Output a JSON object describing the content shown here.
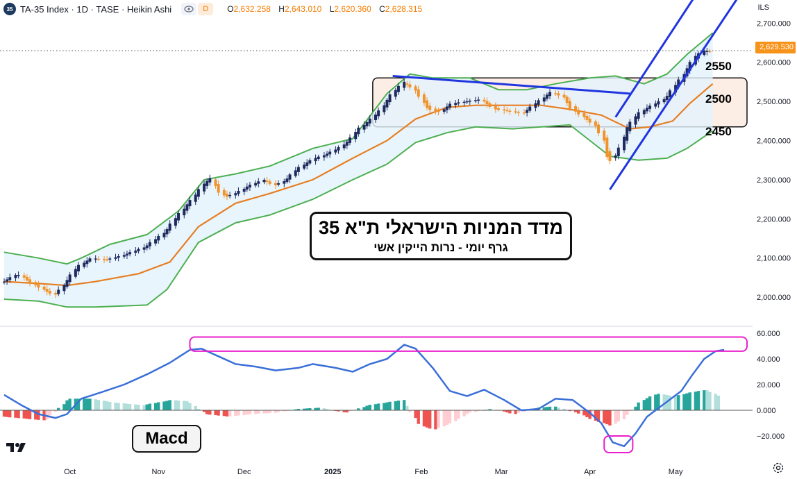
{
  "header": {
    "symbol_badge": "35",
    "title": "TA-35 Index · 1D · TASE · Heikin Ashi",
    "interval_badge": "D",
    "ohlc": [
      {
        "key": "O",
        "value": "2,632.258"
      },
      {
        "key": "H",
        "value": "2,643.010"
      },
      {
        "key": "L",
        "value": "2,620.360"
      },
      {
        "key": "C",
        "value": "2,628.315"
      }
    ],
    "currency": "ILS"
  },
  "last_price_label": "2,629.530",
  "annotations": {
    "title": "מדד המניות הישראלי ת\"א 35",
    "subtitle": "גרף  יומי   -  נרות הייקין אשי",
    "macd_label": "Macd",
    "levels": [
      "2550",
      "2500",
      "2450"
    ]
  },
  "colors": {
    "bull_candle": "#1e2a5e",
    "bear_candle": "#f0932b",
    "bollinger_band": "#4caf50",
    "bollinger_fill": "#e3f2fd",
    "moving_average": "#e67e22",
    "trendline": "#1f35e0",
    "macd_line": "#3a6fd8",
    "hist_pos_strong": "#26a69a",
    "hist_pos_weak": "#b2dfdb",
    "hist_neg_strong": "#ef5350",
    "hist_neg_weak": "#ffcdd2",
    "highlight": "#e91ecb",
    "zone_fill": "#fce8dc",
    "last_price": "#f7931a"
  },
  "chart_data": [
    {
      "type": "candlestick",
      "name": "Heikin Ashi price",
      "x_range": [
        "2024-09-08",
        "2025-05-26"
      ],
      "ylim": [
        1940,
        2720
      ],
      "yticks": [
        "2,000.000",
        "2,100.000",
        "2,200.000",
        "2,300.000",
        "2,400.000",
        "2,500.000",
        "2,600.000",
        "2,700.000"
      ],
      "xticks": [
        {
          "label": "Oct",
          "date": "2024-10-01"
        },
        {
          "label": "Nov",
          "date": "2024-11-01"
        },
        {
          "label": "Dec",
          "date": "2024-12-01"
        },
        {
          "label": "2025",
          "date": "2025-01-01"
        },
        {
          "label": "Feb",
          "date": "2025-02-01"
        },
        {
          "label": "Mar",
          "date": "2025-03-01"
        },
        {
          "label": "Apr",
          "date": "2025-04-01"
        },
        {
          "label": "May",
          "date": "2025-05-01"
        }
      ],
      "close_path": [
        [
          "2024-09-08",
          2040
        ],
        [
          "2024-09-13",
          2060
        ],
        [
          "2024-09-18",
          2035
        ],
        [
          "2024-09-23",
          2015
        ],
        [
          "2024-09-26",
          2005
        ],
        [
          "2024-09-30",
          2040
        ],
        [
          "2024-10-04",
          2080
        ],
        [
          "2024-10-09",
          2100
        ],
        [
          "2024-10-14",
          2095
        ],
        [
          "2024-10-21",
          2110
        ],
        [
          "2024-10-28",
          2130
        ],
        [
          "2024-11-04",
          2170
        ],
        [
          "2024-11-08",
          2210
        ],
        [
          "2024-11-13",
          2250
        ],
        [
          "2024-11-17",
          2290
        ],
        [
          "2024-11-20",
          2305
        ],
        [
          "2024-11-22",
          2270
        ],
        [
          "2024-11-25",
          2255
        ],
        [
          "2024-11-28",
          2265
        ],
        [
          "2024-12-03",
          2285
        ],
        [
          "2024-12-08",
          2300
        ],
        [
          "2024-12-12",
          2285
        ],
        [
          "2024-12-16",
          2300
        ],
        [
          "2024-12-20",
          2330
        ],
        [
          "2024-12-26",
          2355
        ],
        [
          "2024-12-30",
          2365
        ],
        [
          "2025-01-03",
          2380
        ],
        [
          "2025-01-07",
          2400
        ],
        [
          "2025-01-10",
          2430
        ],
        [
          "2025-01-14",
          2450
        ],
        [
          "2025-01-18",
          2480
        ],
        [
          "2025-01-22",
          2520
        ],
        [
          "2025-01-26",
          2550
        ],
        [
          "2025-01-30",
          2530
        ],
        [
          "2025-02-03",
          2485
        ],
        [
          "2025-02-07",
          2470
        ],
        [
          "2025-02-12",
          2495
        ],
        [
          "2025-02-17",
          2500
        ],
        [
          "2025-02-22",
          2505
        ],
        [
          "2025-02-27",
          2480
        ],
        [
          "2025-03-04",
          2475
        ],
        [
          "2025-03-09",
          2470
        ],
        [
          "2025-03-14",
          2500
        ],
        [
          "2025-03-19",
          2525
        ],
        [
          "2025-03-23",
          2510
        ],
        [
          "2025-03-26",
          2480
        ],
        [
          "2025-03-30",
          2460
        ],
        [
          "2025-04-03",
          2440
        ],
        [
          "2025-04-06",
          2400
        ],
        [
          "2025-04-08",
          2340
        ],
        [
          "2025-04-11",
          2370
        ],
        [
          "2025-04-14",
          2430
        ],
        [
          "2025-04-18",
          2470
        ],
        [
          "2025-04-23",
          2490
        ],
        [
          "2025-04-28",
          2510
        ],
        [
          "2025-05-01",
          2540
        ],
        [
          "2025-05-05",
          2580
        ],
        [
          "2025-05-08",
          2615
        ],
        [
          "2025-05-11",
          2630
        ],
        [
          "2025-05-14",
          2628
        ]
      ],
      "overlays": {
        "bollinger_upper": [
          [
            "2024-09-08",
            2115
          ],
          [
            "2024-09-20",
            2100
          ],
          [
            "2024-09-30",
            2085
          ],
          [
            "2024-10-05",
            2100
          ],
          [
            "2024-10-15",
            2135
          ],
          [
            "2024-10-28",
            2160
          ],
          [
            "2024-11-08",
            2220
          ],
          [
            "2024-11-17",
            2300
          ],
          [
            "2024-11-28",
            2315
          ],
          [
            "2024-12-10",
            2335
          ],
          [
            "2024-12-25",
            2380
          ],
          [
            "2025-01-08",
            2405
          ],
          [
            "2025-01-20",
            2520
          ],
          [
            "2025-01-28",
            2570
          ],
          [
            "2025-02-05",
            2560
          ],
          [
            "2025-02-18",
            2560
          ],
          [
            "2025-02-28",
            2530
          ],
          [
            "2025-03-10",
            2530
          ],
          [
            "2025-03-20",
            2545
          ],
          [
            "2025-04-01",
            2560
          ],
          [
            "2025-04-10",
            2565
          ],
          [
            "2025-04-20",
            2545
          ],
          [
            "2025-04-28",
            2570
          ],
          [
            "2025-05-05",
            2620
          ],
          [
            "2025-05-14",
            2675
          ]
        ],
        "bollinger_lower": [
          [
            "2024-09-08",
            1995
          ],
          [
            "2024-09-20",
            1990
          ],
          [
            "2024-09-30",
            1975
          ],
          [
            "2024-10-10",
            1975
          ],
          [
            "2024-10-28",
            1980
          ],
          [
            "2024-11-04",
            2020
          ],
          [
            "2024-11-15",
            2140
          ],
          [
            "2024-11-28",
            2190
          ],
          [
            "2024-12-10",
            2210
          ],
          [
            "2024-12-25",
            2250
          ],
          [
            "2025-01-08",
            2300
          ],
          [
            "2025-01-20",
            2340
          ],
          [
            "2025-01-30",
            2395
          ],
          [
            "2025-02-10",
            2420
          ],
          [
            "2025-02-20",
            2435
          ],
          [
            "2025-03-05",
            2430
          ],
          [
            "2025-03-15",
            2435
          ],
          [
            "2025-03-25",
            2440
          ],
          [
            "2025-04-08",
            2360
          ],
          [
            "2025-04-18",
            2350
          ],
          [
            "2025-04-28",
            2355
          ],
          [
            "2025-05-05",
            2380
          ],
          [
            "2025-05-14",
            2425
          ]
        ],
        "moving_average": [
          [
            "2024-09-08",
            2040
          ],
          [
            "2024-09-20",
            2035
          ],
          [
            "2024-09-30",
            2030
          ],
          [
            "2024-10-10",
            2040
          ],
          [
            "2024-10-25",
            2060
          ],
          [
            "2024-11-05",
            2090
          ],
          [
            "2024-11-15",
            2180
          ],
          [
            "2024-11-28",
            2240
          ],
          [
            "2024-12-10",
            2265
          ],
          [
            "2024-12-25",
            2300
          ],
          [
            "2025-01-08",
            2355
          ],
          [
            "2025-01-20",
            2400
          ],
          [
            "2025-01-30",
            2455
          ],
          [
            "2025-02-10",
            2485
          ],
          [
            "2025-02-20",
            2490
          ],
          [
            "2025-03-05",
            2490
          ],
          [
            "2025-03-15",
            2490
          ],
          [
            "2025-03-25",
            2480
          ],
          [
            "2025-04-05",
            2465
          ],
          [
            "2025-04-15",
            2430
          ],
          [
            "2025-04-22",
            2435
          ],
          [
            "2025-04-30",
            2450
          ],
          [
            "2025-05-06",
            2495
          ],
          [
            "2025-05-14",
            2545
          ]
        ]
      },
      "drawings": {
        "resistance_line": [
          [
            "2025-01-22",
            2565
          ],
          [
            "2025-04-15",
            2520
          ]
        ],
        "channel_upper": [
          [
            "2025-04-10",
            2460
          ],
          [
            "2025-05-25",
            2960
          ]
        ],
        "channel_lower": [
          [
            "2025-04-08",
            2275
          ],
          [
            "2025-05-26",
            2800
          ]
        ],
        "consolidation_zone": {
          "from": "2025-01-15",
          "to": "2025-05-26",
          "y_range": [
            2435,
            2560
          ]
        }
      }
    },
    {
      "type": "line+histogram",
      "name": "MACD",
      "ylim": [
        -33,
        60
      ],
      "yticks": [
        "60.000",
        "40.000",
        "20.000",
        "0.000",
        "−20.000"
      ],
      "macd_line": [
        [
          "2024-09-08",
          12
        ],
        [
          "2024-09-14",
          4
        ],
        [
          "2024-09-20",
          -3
        ],
        [
          "2024-09-26",
          -6
        ],
        [
          "2024-09-30",
          -3
        ],
        [
          "2024-10-05",
          9
        ],
        [
          "2024-10-12",
          14
        ],
        [
          "2024-10-20",
          20
        ],
        [
          "2024-10-28",
          28
        ],
        [
          "2024-11-05",
          37
        ],
        [
          "2024-11-12",
          47
        ],
        [
          "2024-11-16",
          48
        ],
        [
          "2024-11-22",
          42
        ],
        [
          "2024-11-28",
          36
        ],
        [
          "2024-12-05",
          34
        ],
        [
          "2024-12-12",
          31
        ],
        [
          "2024-12-20",
          33
        ],
        [
          "2024-12-25",
          36
        ],
        [
          "2025-01-02",
          33
        ],
        [
          "2025-01-08",
          30
        ],
        [
          "2025-01-14",
          36
        ],
        [
          "2025-01-20",
          40
        ],
        [
          "2025-01-26",
          51
        ],
        [
          "2025-01-30",
          48
        ],
        [
          "2025-02-05",
          33
        ],
        [
          "2025-02-11",
          15
        ],
        [
          "2025-02-17",
          11
        ],
        [
          "2025-02-23",
          16
        ],
        [
          "2025-03-02",
          8
        ],
        [
          "2025-03-08",
          0
        ],
        [
          "2025-03-14",
          1
        ],
        [
          "2025-03-20",
          9
        ],
        [
          "2025-03-26",
          8
        ],
        [
          "2025-04-01",
          -2
        ],
        [
          "2025-04-05",
          -10
        ],
        [
          "2025-04-09",
          -25
        ],
        [
          "2025-04-13",
          -28
        ],
        [
          "2025-04-17",
          -18
        ],
        [
          "2025-04-21",
          -5
        ],
        [
          "2025-04-27",
          5
        ],
        [
          "2025-05-03",
          15
        ],
        [
          "2025-05-07",
          28
        ],
        [
          "2025-05-11",
          40
        ],
        [
          "2025-05-15",
          46
        ],
        [
          "2025-05-18",
          47
        ]
      ],
      "histogram": [
        [
          "2024-09-08",
          -5
        ],
        [
          "2024-09-23",
          -8
        ],
        [
          "2024-10-01",
          9
        ],
        [
          "2024-10-09",
          9
        ],
        [
          "2024-10-17",
          6
        ],
        [
          "2024-10-27",
          4
        ],
        [
          "2024-11-06",
          8
        ],
        [
          "2024-11-12",
          7
        ],
        [
          "2024-11-18",
          -3
        ],
        [
          "2024-11-26",
          -5
        ],
        [
          "2024-12-04",
          -3
        ],
        [
          "2024-12-12",
          -2
        ],
        [
          "2024-12-20",
          1
        ],
        [
          "2024-12-28",
          2
        ],
        [
          "2025-01-06",
          -2
        ],
        [
          "2025-01-14",
          4
        ],
        [
          "2025-01-20",
          6
        ],
        [
          "2025-01-26",
          8
        ],
        [
          "2025-02-01",
          -12
        ],
        [
          "2025-02-06",
          -15
        ],
        [
          "2025-02-12",
          -10
        ],
        [
          "2025-02-18",
          -2
        ],
        [
          "2025-02-26",
          1
        ],
        [
          "2025-03-06",
          -3
        ],
        [
          "2025-03-14",
          2
        ],
        [
          "2025-03-20",
          3
        ],
        [
          "2025-03-28",
          -2
        ],
        [
          "2025-04-03",
          -8
        ],
        [
          "2025-04-09",
          -12
        ],
        [
          "2025-04-13",
          -7
        ],
        [
          "2025-04-19",
          7
        ],
        [
          "2025-04-25",
          13
        ],
        [
          "2025-05-01",
          11
        ],
        [
          "2025-05-07",
          14
        ],
        [
          "2025-05-12",
          16
        ],
        [
          "2025-05-17",
          11
        ]
      ],
      "zero_line": 0,
      "highlights": [
        {
          "shape": "rounded-rect",
          "from": "2024-11-12",
          "to": "2025-05-26",
          "y_range": [
            46,
            57
          ]
        },
        {
          "shape": "rounded-rect",
          "from": "2025-04-06",
          "to": "2025-04-16",
          "y_range": [
            -33,
            -20
          ]
        }
      ]
    }
  ]
}
